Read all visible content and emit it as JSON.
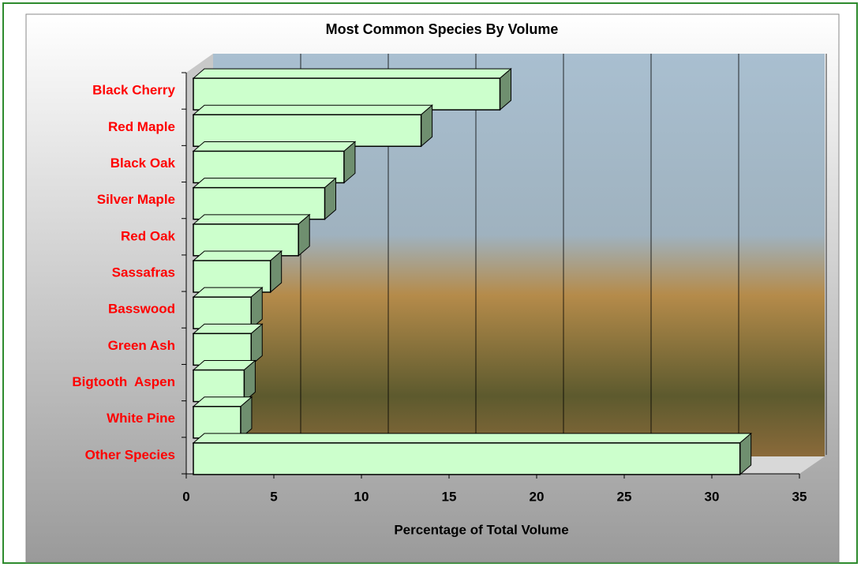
{
  "chart_data": {
    "type": "bar",
    "orientation": "horizontal",
    "title": "Most Common Species By Volume",
    "x_label": "Percentage of Total Volume",
    "categories": [
      "Black Cherry",
      "Red Maple",
      "Black Oak",
      "Silver Maple",
      "Red Oak",
      "Sassafras",
      "Basswood",
      "Green Ash",
      "Bigtooth  Aspen",
      "White Pine",
      "Other Species"
    ],
    "values": [
      17.5,
      13.0,
      8.6,
      7.5,
      6.0,
      4.4,
      3.3,
      3.3,
      2.9,
      2.7,
      31.2
    ],
    "color": "#ccffcc",
    "category_label_color": "#ff0000",
    "xlim": [
      0,
      35
    ],
    "xticks": [
      0,
      5,
      10,
      15,
      20,
      25,
      30,
      35
    ],
    "grid": true
  }
}
